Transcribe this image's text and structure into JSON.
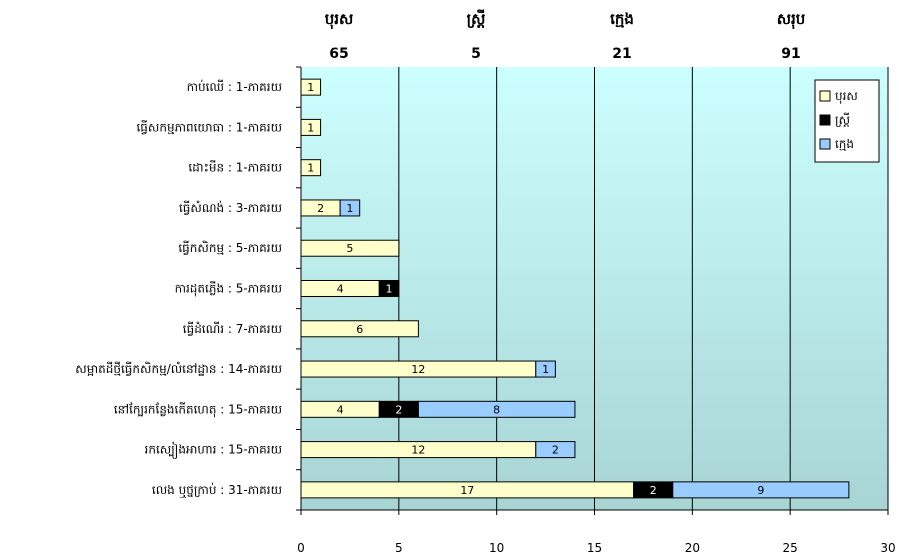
{
  "summary": {
    "items": [
      {
        "label": "បុរស",
        "value": "65"
      },
      {
        "label": "ស្ត្រី",
        "value": "5"
      },
      {
        "label": "ក្មេង",
        "value": "21"
      },
      {
        "label": "សរុប",
        "value": "91"
      }
    ]
  },
  "chart_data": {
    "type": "bar",
    "orientation": "horizontal",
    "stacked": true,
    "title": "",
    "xlabel": "",
    "ylabel": "",
    "xlim": [
      0,
      30
    ],
    "x_ticks": [
      "0",
      "5",
      "10",
      "15",
      "20",
      "25",
      "30"
    ],
    "grid": true,
    "legend_position": "top-right",
    "categories": [
      "កាប់ឈើ : 1-ភាគរយ",
      "ធ្វើសកម្មភាពយោធា : 1-ភាគរយ",
      "ដោះមីន : 1-ភាគរយ",
      "ធ្វើសំណង់ : 3-ភាគរយ",
      "ធ្វើកសិកម្ម : 5-ភាគរយ",
      "ការដុតភ្លើង : 5-ភាគរយ",
      "ធ្វើដំណើរ : 7-ភាគរយ",
      "សម្អាតដីថ្មីធ្វើកសិកម្ម/លំនៅដ្ឋាន : 14-ភាគរយ",
      "នៅក្បែរកន្លែងកើតហេតុ : 15-ភាគរយ",
      "រកស្បៀងអាហារ : 15-ភាគរយ",
      "លេង ឬថ្នក្រាប់ : 31-ភាគរយ"
    ],
    "series": [
      {
        "name": "បុរស",
        "color": "#FFFFCC",
        "text_color": "#000000",
        "values": [
          1,
          1,
          1,
          2,
          5,
          4,
          6,
          12,
          4,
          12,
          17
        ]
      },
      {
        "name": "ស្ត្រី",
        "color": "#000000",
        "text_color": "#FFFFFF",
        "values": [
          0,
          0,
          0,
          0,
          0,
          1,
          0,
          0,
          2,
          0,
          2
        ]
      },
      {
        "name": "ក្មេង",
        "color": "#99CCFF",
        "text_color": "#000000",
        "values": [
          0,
          0,
          0,
          1,
          0,
          0,
          0,
          1,
          8,
          2,
          9
        ]
      }
    ],
    "colors": {
      "plot_top": "#CCFFFF",
      "plot_bottom": "#A8D4D4",
      "gridline": "#000000"
    }
  }
}
